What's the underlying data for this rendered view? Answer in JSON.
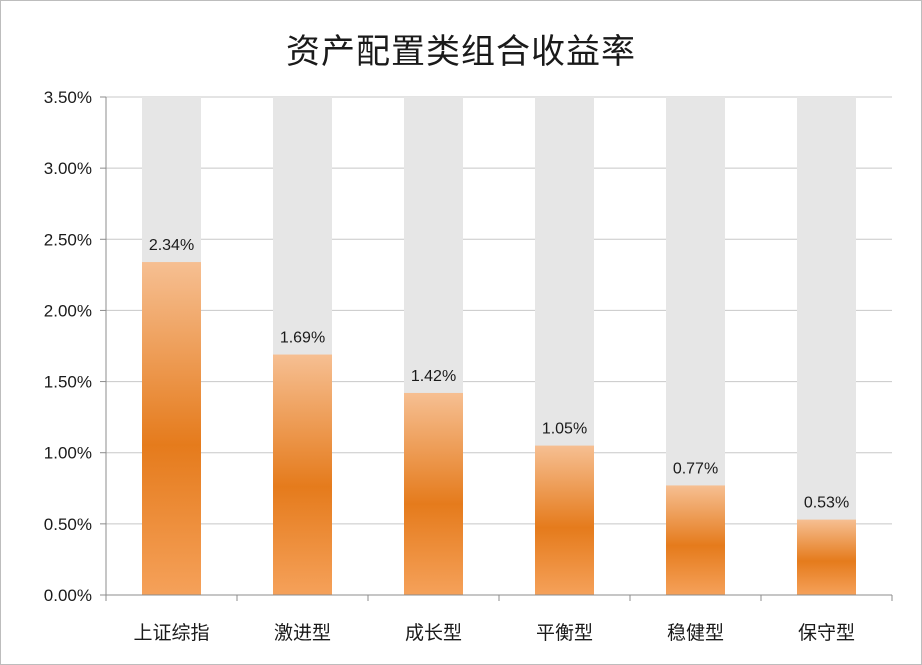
{
  "chart_data": {
    "type": "bar",
    "title": "资产配置类组合收益率",
    "xlabel": "",
    "ylabel": "",
    "categories": [
      "上证综指",
      "激进型",
      "成长型",
      "平衡型",
      "稳健型",
      "保守型"
    ],
    "values": [
      2.34,
      1.69,
      1.42,
      1.05,
      0.77,
      0.53
    ],
    "data_labels": [
      "2.34%",
      "1.69%",
      "1.42%",
      "1.05%",
      "0.77%",
      "0.53%"
    ],
    "ylim": [
      0,
      3.5
    ],
    "yticks": [
      0,
      0.5,
      1.0,
      1.5,
      2.0,
      2.5,
      3.0,
      3.5
    ],
    "ytick_labels": [
      "0.00%",
      "0.50%",
      "1.00%",
      "1.50%",
      "2.00%",
      "2.50%",
      "3.00%",
      "3.50%"
    ],
    "grid": true,
    "background_bars": true,
    "legend": "none",
    "colors": {
      "bar_light": "#f6bf92",
      "bar_mid": "#e57b1c",
      "bar_bottom": "#f5a15a",
      "background_bar": "#e6e6e6",
      "grid": "#c8c8c8",
      "axis": "#8c8c8c"
    }
  }
}
